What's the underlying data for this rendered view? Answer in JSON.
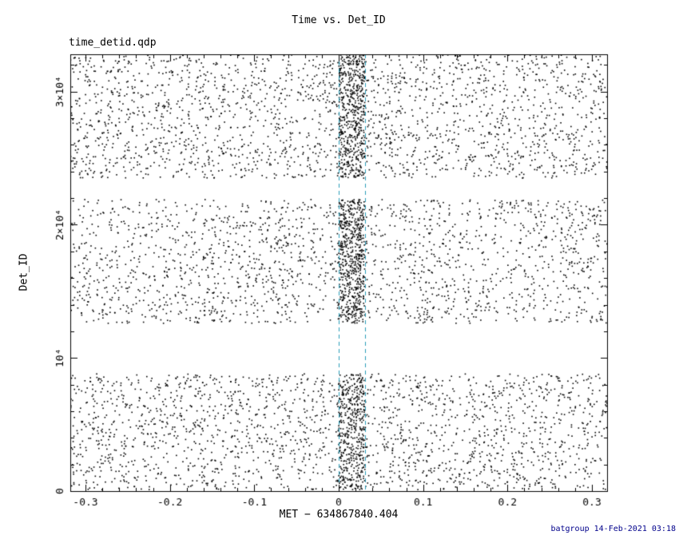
{
  "footer": {
    "credit": "batgroup 14-Feb-2021 03:18",
    "color": "#00008b"
  },
  "chart_data": {
    "type": "scatter",
    "title": "Time vs. Det_ID",
    "file_label": "time_detid.qdp",
    "xlabel": "MET − 634867840.404",
    "ylabel": "Det_ID",
    "xlim": [
      -0.318,
      0.318
    ],
    "ylim": [
      0,
      32800
    ],
    "x_major_ticks": [
      -0.3,
      -0.2,
      -0.1,
      0,
      0.1,
      0.2,
      0.3
    ],
    "x_tick_labels": [
      "-0.3",
      "-0.2",
      "-0.1",
      "0",
      "0.1",
      "0.2",
      "0.3"
    ],
    "x_minor_step": 0.02,
    "y_major_ticks": [
      0,
      10000,
      20000,
      30000
    ],
    "y_tick_labels": [
      "0",
      "10⁴",
      "2×10⁴",
      "3×10⁴"
    ],
    "y_minor_step": 2000,
    "grid": false,
    "legend": null,
    "axis_color": "#000000",
    "marker_color": "#000000",
    "marker_size": 1.6,
    "point_bands": [
      {
        "name": "detector-block-low",
        "y_min": 100,
        "y_max": 8800,
        "n_background": 2000,
        "n_burst": 400
      },
      {
        "name": "detector-block-mid",
        "y_min": 12600,
        "y_max": 21900,
        "n_background": 1900,
        "n_burst": 550
      },
      {
        "name": "detector-block-high",
        "y_min": 23500,
        "y_max": 32760,
        "n_background": 2100,
        "n_burst": 500
      }
    ],
    "burst_interval": {
      "x_min": 0.0,
      "x_max": 0.031
    },
    "selection_lines": {
      "x_values": [
        0.0,
        0.031
      ],
      "color": "#2a9db8",
      "dash": [
        5,
        4
      ]
    },
    "seed": 20210214
  }
}
